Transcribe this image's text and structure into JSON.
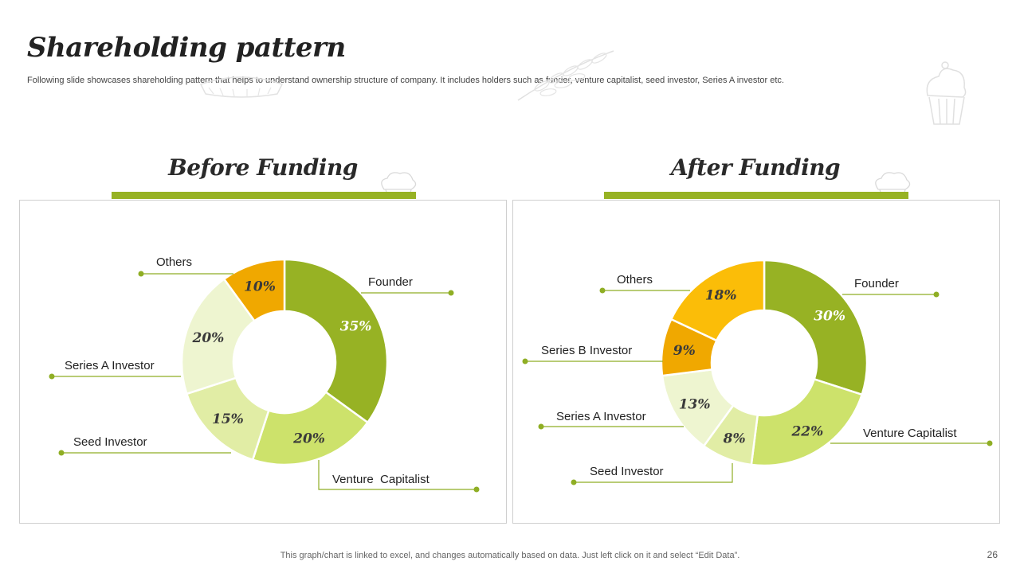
{
  "header": {
    "title": "Shareholding pattern",
    "subtitle": "Following slide showcases shareholding pattern that helps to understand ownership structure of company. It includes holders such as funder, venture capitalist, seed investor, Series A investor etc."
  },
  "footer": {
    "note": "This graph/chart is linked to excel,  and changes automatically based on data. Just left click on it and select “Edit Data”.",
    "page_number": "26"
  },
  "colors": {
    "accent_green": "#97b224",
    "line_green": "#8fae24"
  },
  "icons": [
    "wheat-icon",
    "cupcake-icon",
    "chef-hat-icon",
    "pie-icon"
  ],
  "chart_data": [
    {
      "type": "pie",
      "donut": true,
      "title": "Before Funding",
      "categories": [
        "Founder",
        "Venture  Capitalist",
        "Seed Investor",
        "Series A Investor",
        "Others"
      ],
      "values": [
        35,
        20,
        15,
        20,
        10
      ],
      "value_labels": [
        "35%",
        "20%",
        "15%",
        "20%",
        "10%"
      ],
      "colors": [
        "#97b224",
        "#cde26b",
        "#e1eda5",
        "#eef5d0",
        "#f0a800"
      ],
      "label_colors": [
        "#ffffff",
        "#3a3a3a",
        "#3a3a3a",
        "#3a3a3a",
        "#3a3a3a"
      ]
    },
    {
      "type": "pie",
      "donut": true,
      "title": "After Funding",
      "categories": [
        "Founder",
        "Venture Capitalist",
        "Seed Investor",
        "Series A Investor",
        "Series B Investor",
        "Others"
      ],
      "values": [
        30,
        22,
        8,
        13,
        9,
        18
      ],
      "value_labels": [
        "30%",
        "22%",
        "8%",
        "13%",
        "9%",
        "18%"
      ],
      "colors": [
        "#97b224",
        "#cde26b",
        "#e1eda5",
        "#eef5d0",
        "#f0a800",
        "#fbbd08"
      ],
      "label_colors": [
        "#ffffff",
        "#3a3a3a",
        "#3a3a3a",
        "#3a3a3a",
        "#3a3a3a",
        "#3a3a3a"
      ]
    }
  ]
}
